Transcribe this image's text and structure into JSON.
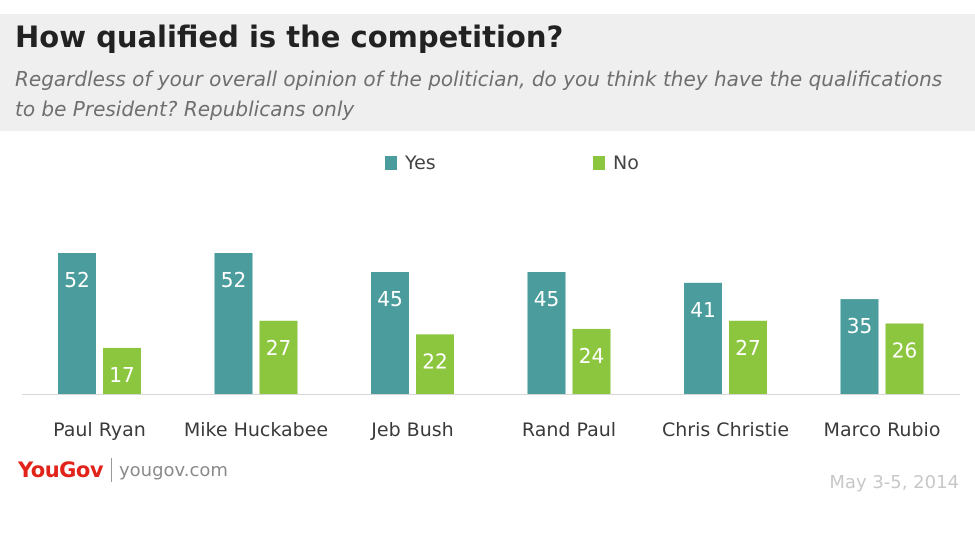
{
  "chart_data": {
    "type": "bar",
    "title": "How qualified is the competition?",
    "subtitle": "Regardless of your overall opinion of the politician, do you think they have the qualifications to be President? Republicans only",
    "categories": [
      "Paul Ryan",
      "Mike Huckabee",
      "Jeb Bush",
      "Rand Paul",
      "Chris Christie",
      "Marco Rubio"
    ],
    "series": [
      {
        "name": "Yes",
        "color": "#4a9d9c",
        "values": [
          52,
          52,
          45,
          45,
          41,
          35
        ]
      },
      {
        "name": "No",
        "color": "#8cc63f",
        "values": [
          17,
          27,
          22,
          24,
          27,
          26
        ]
      }
    ],
    "ylim": [
      0,
      52
    ],
    "xlabel": "",
    "ylabel": "",
    "grid": false,
    "legend": "top-center",
    "data_labels": true
  },
  "footer": {
    "brand": "YouGov",
    "url": "yougov.com",
    "date": "May 3-5, 2014"
  }
}
